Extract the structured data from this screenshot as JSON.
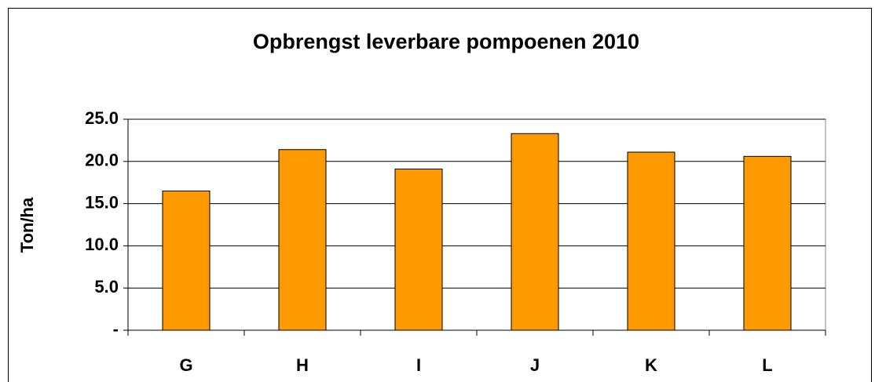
{
  "chart_data": {
    "type": "bar",
    "title": "Opbrengst leverbare pompoenen 2010",
    "y_label": "Ton/ha",
    "categories": [
      "G",
      "H",
      "I",
      "J",
      "K",
      "L"
    ],
    "values": [
      16.5,
      21.4,
      19.1,
      23.3,
      21.1,
      20.6
    ],
    "color": "#ff9900",
    "ylim": [
      0,
      25
    ],
    "yticks": [
      {
        "value": 0,
        "label": "-"
      },
      {
        "value": 5,
        "label": "5.0"
      },
      {
        "value": 10,
        "label": "10.0"
      },
      {
        "value": 15,
        "label": "15.0"
      },
      {
        "value": 20,
        "label": "20.0"
      },
      {
        "value": 25,
        "label": "25.0"
      }
    ],
    "grid": true
  }
}
